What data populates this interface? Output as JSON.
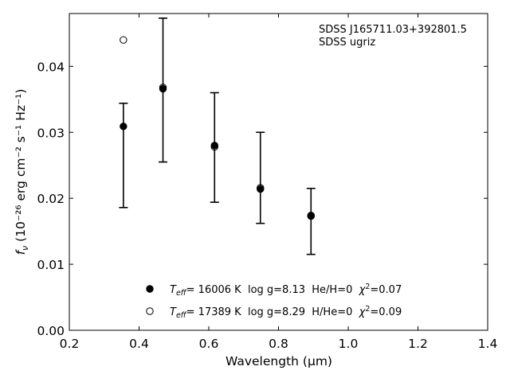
{
  "chart_data": {
    "type": "scatter",
    "xlabel": "Wavelength",
    "xlabel_unit": "(μm)",
    "ylabel_prefix": "f",
    "ylabel_sub": "ν",
    "ylabel_units": "(10⁻²⁶ erg cm⁻² s⁻¹ Hz⁻¹)",
    "xlim": [
      0.2,
      1.4
    ],
    "ylim": [
      0.0,
      0.048
    ],
    "x_ticks": [
      0.2,
      0.4,
      0.6,
      0.8,
      1.0,
      1.2,
      1.4
    ],
    "x_tick_labels": [
      "0.2",
      "0.4",
      "0.6",
      "0.8",
      "1.0",
      "1.2",
      "1.4"
    ],
    "y_ticks": [
      0.0,
      0.01,
      0.02,
      0.03,
      0.04
    ],
    "y_tick_labels": [
      "0.00",
      "0.01",
      "0.02",
      "0.03",
      "0.04"
    ],
    "grid": false,
    "annotations": [
      "SDSS J165711.03+392801.5",
      "SDSS ugriz"
    ],
    "observed": {
      "x": [
        0.3551,
        0.4686,
        0.6166,
        0.748,
        0.8932
      ],
      "y": [
        0.0309,
        0.0364,
        0.0278,
        0.0215,
        0.0173
      ],
      "yerr_low": [
        0.0186,
        0.0255,
        0.0194,
        0.0162,
        0.0115
      ],
      "yerr_high": [
        0.0344,
        0.0473,
        0.036,
        0.03,
        0.0215
      ]
    },
    "series": [
      {
        "marker": "filled",
        "legend": {
          "teff_sym": "T",
          "teff_sub": "eff",
          "text": "= 16006 K  log g=8.13  He/H=0  ",
          "chi_sym": "χ",
          "chi_sup": "2",
          "chi_val": "=0.07"
        },
        "x": [
          0.3551,
          0.4686,
          0.6166,
          0.748,
          0.8932
        ],
        "y": [
          0.0309,
          0.0366,
          0.028,
          0.0214,
          0.0174
        ]
      },
      {
        "marker": "open",
        "legend": {
          "teff_sym": "T",
          "teff_sub": "eff",
          "text": "= 17389 K  log g=8.29  H/He=0  ",
          "chi_sym": "χ",
          "chi_sup": "2",
          "chi_val": "=0.09"
        },
        "x": [
          0.3551,
          0.4686,
          0.6166,
          0.748,
          0.8932
        ],
        "y": [
          0.044,
          0.0368,
          0.0278,
          0.0216,
          0.0173
        ]
      }
    ],
    "legend_position": "lower-center"
  }
}
